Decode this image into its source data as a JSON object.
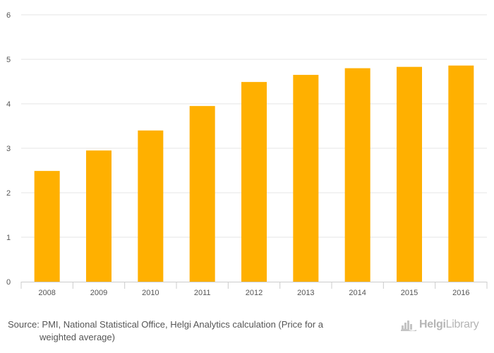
{
  "chart_data": {
    "type": "bar",
    "title": "",
    "xlabel": "",
    "ylabel": "",
    "categories": [
      "2008",
      "2009",
      "2010",
      "2011",
      "2012",
      "2013",
      "2014",
      "2015",
      "2016"
    ],
    "values": [
      2.49,
      2.95,
      3.4,
      3.95,
      4.49,
      4.65,
      4.8,
      4.83,
      4.86
    ],
    "ylim": [
      0,
      6
    ],
    "yticks": [
      0,
      1,
      2,
      3,
      4,
      5,
      6
    ],
    "grid": true,
    "legend": "none",
    "bar_color": "#FFB000",
    "grid_color": "#E6E6E6"
  },
  "footer": {
    "source_line1": "Source: PMI, National Statistical Office, Helgi Analytics calculation (Price for a",
    "source_line2": "weighted average)"
  },
  "logo": {
    "text_bold": "Helgi",
    "text_light": "Library",
    "icon": "helgi-library-logo-icon"
  }
}
